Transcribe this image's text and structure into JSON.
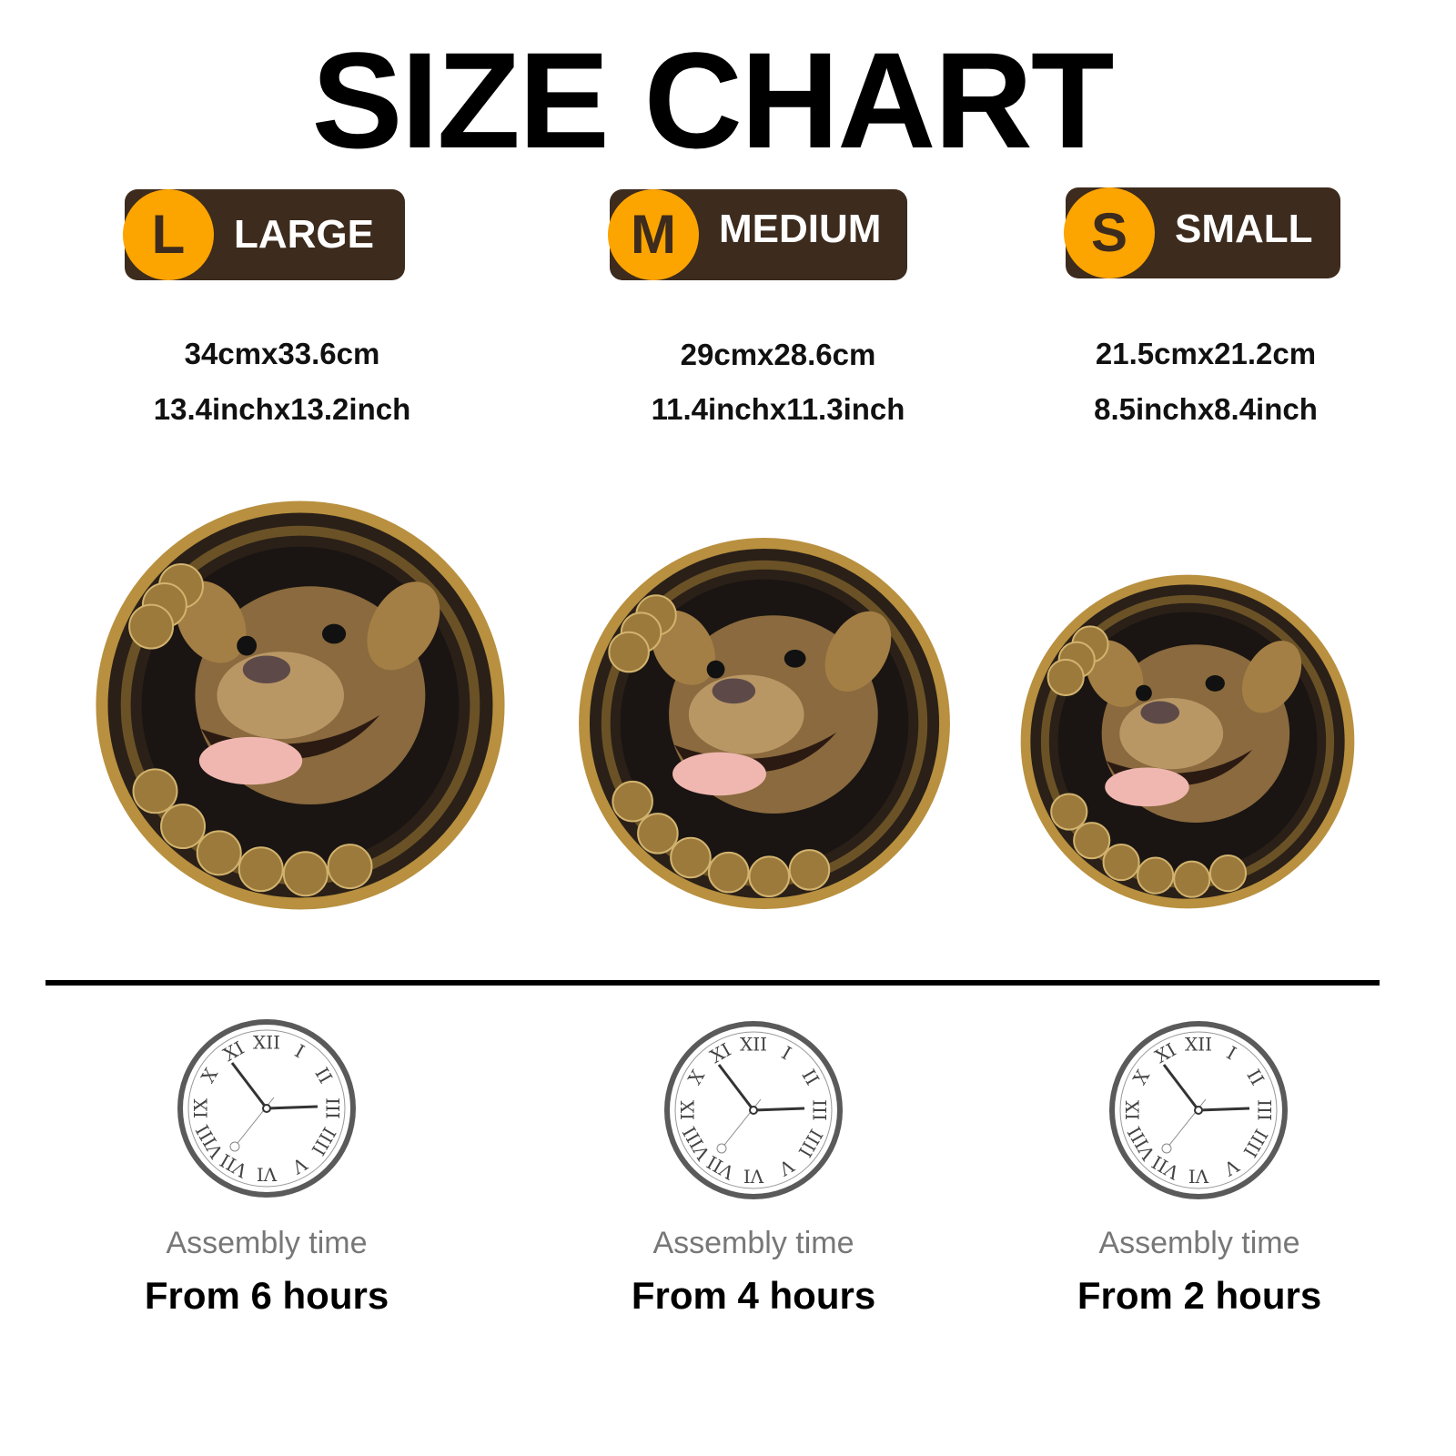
{
  "title": "SIZE CHART",
  "sizes": [
    {
      "letter": "L",
      "label": "LARGE",
      "metric": "34cmx33.6cm",
      "imperial": "13.4inchx13.2inch",
      "assembly_label": "Assembly time",
      "assembly_time": "From 6 hours"
    },
    {
      "letter": "M",
      "label": "MEDIUM",
      "metric": "29cmx28.6cm",
      "imperial": "11.4inchx11.3inch",
      "assembly_label": "Assembly time",
      "assembly_time": "From 4 hours"
    },
    {
      "letter": "S",
      "label": "SMALL",
      "metric": "21.5cmx21.2cm",
      "imperial": "8.5inchx8.4inch",
      "assembly_label": "Assembly time",
      "assembly_time": "From 2 hours"
    }
  ],
  "clock_numerals": [
    "XII",
    "I",
    "II",
    "III",
    "IIII",
    "V",
    "VI",
    "VII",
    "VIII",
    "IX",
    "X",
    "XI"
  ],
  "colors": {
    "badge_circle": "#fca400",
    "badge_body": "#3d2b1d",
    "gold": "#b8903f",
    "clock": "#5a5a5a"
  },
  "icons": {
    "product": "bulldog-medallion-image",
    "clock": "clock-icon"
  }
}
